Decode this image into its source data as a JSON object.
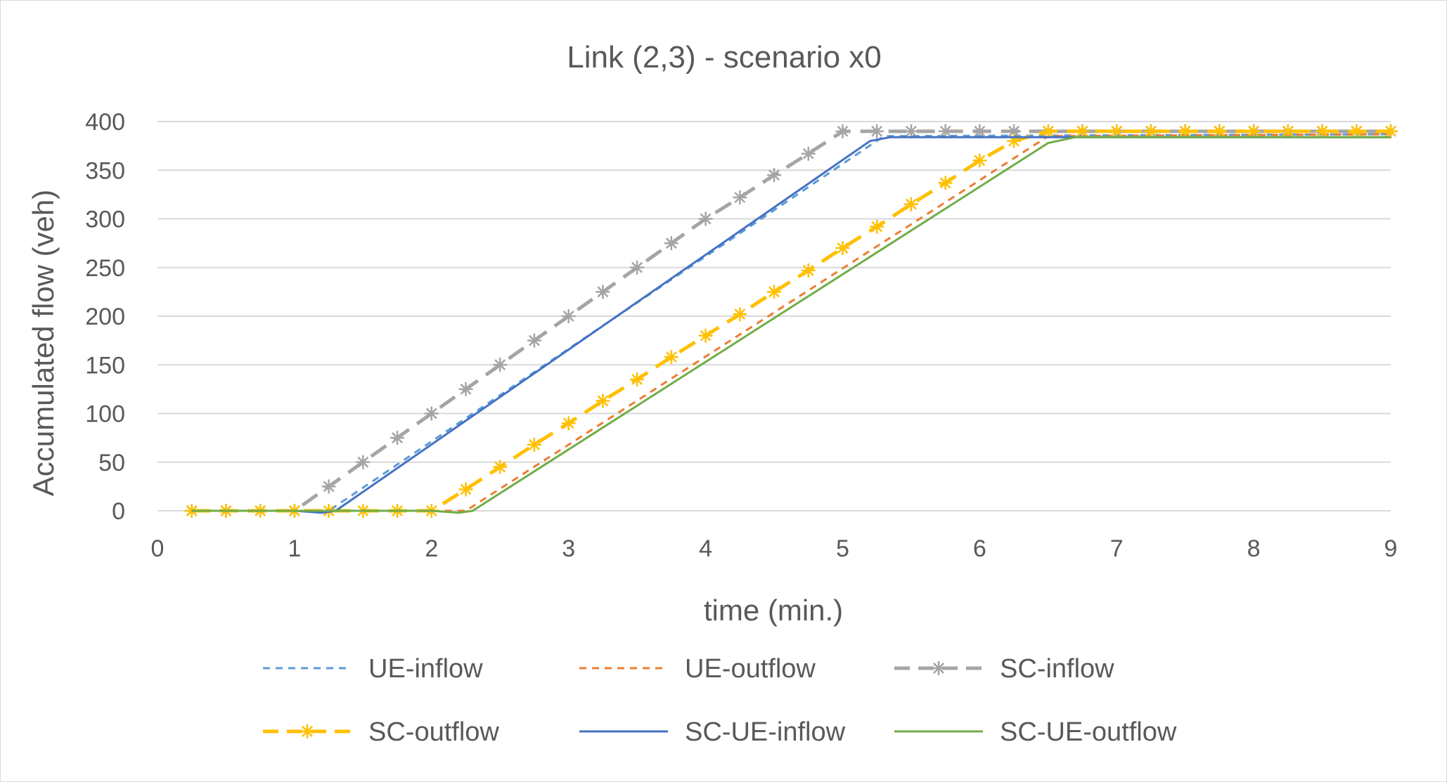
{
  "chart_data": {
    "type": "line",
    "title": "Link (2,3) - scenario x0",
    "xlabel": "time (min.)",
    "ylabel": "Accumulated flow (veh)",
    "xlim": [
      0,
      9
    ],
    "ylim": [
      0,
      400
    ],
    "x_ticks": [
      0,
      1,
      2,
      3,
      4,
      5,
      6,
      7,
      8,
      9
    ],
    "y_ticks": [
      0,
      50,
      100,
      150,
      200,
      250,
      300,
      350,
      400
    ],
    "grid": "horizontal",
    "legend_position": "bottom",
    "series": [
      {
        "name": "UE-inflow",
        "color": "#5b9bd5",
        "style": "short-dash",
        "marker": "none",
        "x": [
          0.25,
          1.25,
          5.3,
          9
        ],
        "y": [
          0,
          0,
          385,
          387
        ]
      },
      {
        "name": "UE-outflow",
        "color": "#ed7d31",
        "style": "short-dash",
        "marker": "none",
        "x": [
          0.25,
          2.25,
          6.5,
          9
        ],
        "y": [
          0,
          0,
          385,
          387
        ]
      },
      {
        "name": "SC-inflow",
        "color": "#a5a5a5",
        "style": "long-dash",
        "marker": "asterisk",
        "x": [
          0.25,
          0.5,
          0.75,
          1.0,
          1.25,
          1.5,
          1.75,
          2.0,
          2.25,
          2.5,
          2.75,
          3.0,
          3.25,
          3.5,
          3.75,
          4.0,
          4.25,
          4.5,
          4.75,
          5.0,
          5.25,
          5.5,
          5.75,
          6.0,
          6.25,
          6.5,
          6.75,
          7.0,
          7.25,
          7.5,
          7.75,
          8.0,
          8.25,
          8.5,
          8.75,
          9.0
        ],
        "y": [
          0,
          0,
          0,
          0,
          25,
          50,
          75,
          100,
          125,
          150,
          175,
          200,
          225,
          250,
          275,
          300,
          322,
          345,
          367,
          390,
          390,
          390,
          390,
          390,
          390,
          390,
          390,
          390,
          390,
          390,
          390,
          390,
          390,
          390,
          390,
          390
        ]
      },
      {
        "name": "SC-outflow",
        "color": "#ffc000",
        "style": "long-dash",
        "marker": "asterisk",
        "x": [
          0.25,
          0.5,
          0.75,
          1.0,
          1.25,
          1.5,
          1.75,
          2.0,
          2.25,
          2.5,
          2.75,
          3.0,
          3.25,
          3.5,
          3.75,
          4.0,
          4.25,
          4.5,
          4.75,
          5.0,
          5.25,
          5.5,
          5.75,
          6.0,
          6.25,
          6.5,
          6.75,
          7.0,
          7.25,
          7.5,
          7.75,
          8.0,
          8.25,
          8.5,
          8.75,
          9.0
        ],
        "y": [
          0,
          0,
          0,
          0,
          0,
          0,
          0,
          0,
          22,
          45,
          68,
          90,
          113,
          135,
          158,
          180,
          202,
          225,
          247,
          270,
          292,
          315,
          337,
          360,
          380,
          390,
          390,
          390,
          390,
          390,
          390,
          390,
          390,
          390,
          390,
          390
        ]
      },
      {
        "name": "SC-UE-inflow",
        "color": "#4472c4",
        "style": "solid",
        "marker": "none",
        "x": [
          0.25,
          1.0,
          1.2,
          1.3,
          5.2,
          5.35,
          9
        ],
        "y": [
          0,
          0,
          -2,
          0,
          380,
          384,
          384
        ]
      },
      {
        "name": "SC-UE-outflow",
        "color": "#70ad47",
        "style": "solid",
        "marker": "none",
        "x": [
          0.25,
          2.0,
          2.2,
          2.3,
          6.5,
          6.7,
          9
        ],
        "y": [
          0,
          0,
          -2,
          0,
          378,
          384,
          384
        ]
      }
    ]
  }
}
